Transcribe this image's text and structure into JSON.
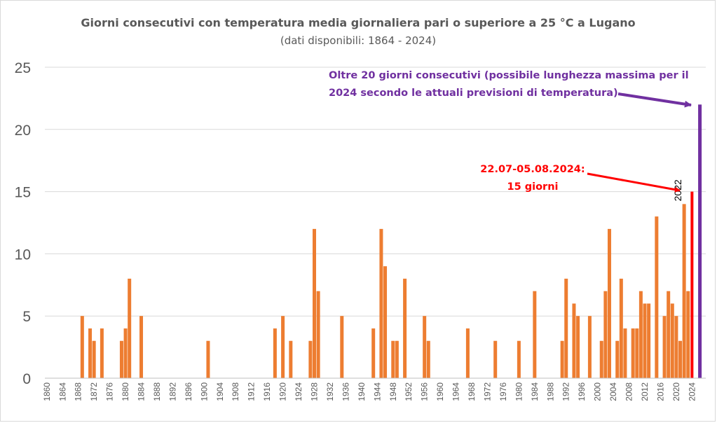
{
  "chart_data": {
    "type": "bar",
    "title": "Giorni consecutivi con temperatura media giornaliera pari o superiore a 25 °C a Lugano",
    "subtitle": "(dati disponibili: 1864 - 2024)",
    "xlabel": "",
    "ylabel": "",
    "xlim": [
      1860,
      2027
    ],
    "ylim": [
      0,
      25
    ],
    "yticks": [
      0,
      5,
      10,
      15,
      20,
      25
    ],
    "xticks": [
      1860,
      1864,
      1868,
      1872,
      1876,
      1880,
      1884,
      1888,
      1892,
      1896,
      1900,
      1904,
      1908,
      1912,
      1916,
      1920,
      1924,
      1928,
      1932,
      1936,
      1940,
      1944,
      1948,
      1952,
      1956,
      1960,
      1964,
      1968,
      1972,
      1976,
      1980,
      1984,
      1988,
      1992,
      1996,
      2000,
      2004,
      2008,
      2012,
      2016,
      2020,
      2024
    ],
    "grid": "horizontal",
    "legend": "none",
    "colors": {
      "bars": "#ed7d31",
      "current": "#ff0000",
      "forecast": "#7030a0",
      "grid": "#d9d9d9",
      "text": "#595959"
    },
    "series": [
      {
        "x": [
          1869,
          1871,
          1872,
          1874,
          1879,
          1880,
          1881,
          1884,
          1901,
          1918,
          1920,
          1922,
          1927,
          1928,
          1929,
          1935,
          1943,
          1945,
          1946,
          1948,
          1949,
          1951,
          1956,
          1957,
          1967,
          1974,
          1980,
          1984,
          1991,
          1992,
          1994,
          1995,
          1998,
          2001,
          2002,
          2003,
          2005,
          2006,
          2007,
          2009,
          2010,
          2011,
          2012,
          2013,
          2015,
          2017,
          2018,
          2019,
          2020,
          2021,
          2022,
          2023
        ],
        "values": [
          5,
          4,
          3,
          4,
          3,
          4,
          8,
          5,
          3,
          4,
          5,
          3,
          3,
          12,
          7,
          5,
          4,
          12,
          9,
          3,
          3,
          8,
          5,
          3,
          4,
          3,
          3,
          7,
          3,
          8,
          6,
          5,
          5,
          3,
          7,
          12,
          3,
          8,
          4,
          4,
          4,
          7,
          6,
          6,
          13,
          5,
          7,
          6,
          5,
          3,
          14,
          7
        ]
      },
      {
        "x": [
          2024
        ],
        "values": [
          15
        ]
      },
      {
        "x": [
          2026
        ],
        "values": [
          22
        ]
      }
    ],
    "annotations": [
      {
        "text_lines": [
          "Oltre 20 giorni consecutivi (possibile lunghezza massima per il",
          "2024 secondo le attuali previsioni di temperatura)"
        ],
        "color": "#7030a0",
        "target_year": 2026,
        "target_value": 22
      },
      {
        "text_lines": [
          "22.07-05.08.2024:",
          "15 giorni"
        ],
        "color": "#ff0000",
        "target_year": 2024,
        "target_value": 15
      },
      {
        "text": "2022",
        "target_year": 2022
      }
    ]
  }
}
